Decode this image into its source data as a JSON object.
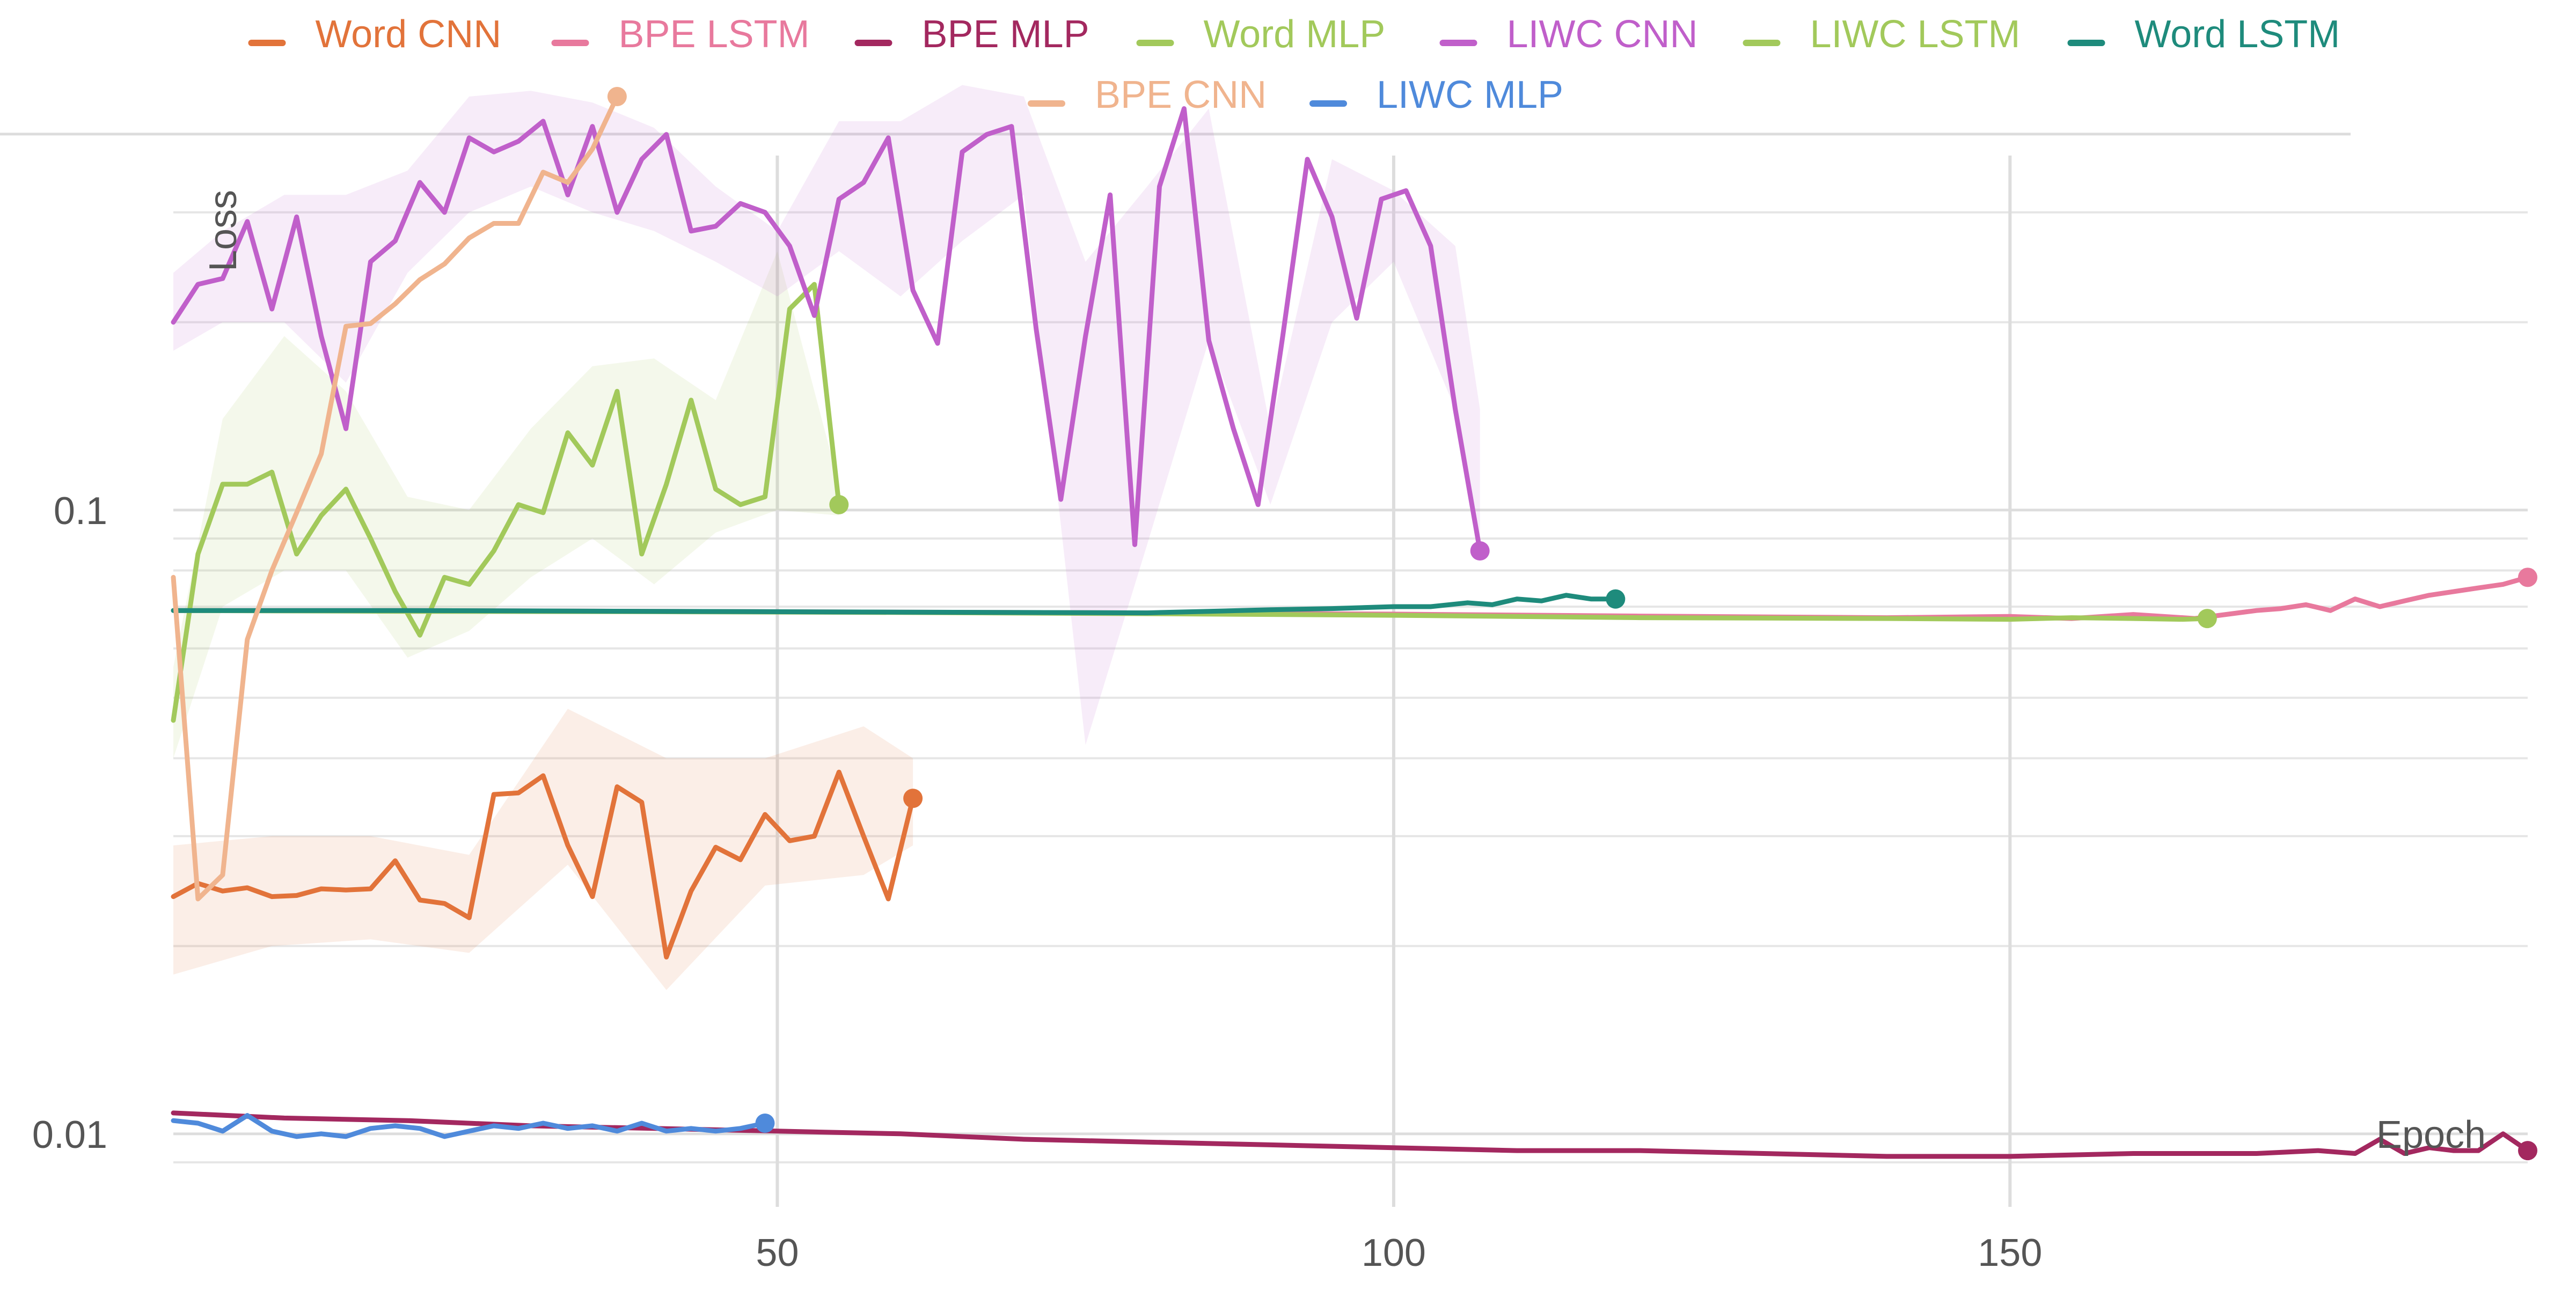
{
  "chart_data": {
    "type": "line",
    "xlabel": "Epoch",
    "ylabel": "Loss",
    "yscale": "log",
    "xlim": [
      1,
      192
    ],
    "ylim": [
      0.0086,
      0.37
    ],
    "x_ticks": [
      50,
      100,
      150
    ],
    "y_ticks": [
      {
        "value": 0.01,
        "label": "0.01"
      },
      {
        "value": 0.1,
        "label": "0.1"
      }
    ],
    "grid": true,
    "legend_position": "top",
    "series": [
      {
        "name": "Word CNN",
        "color": "#e2733a",
        "x": [
          1,
          3,
          5,
          7,
          9,
          11,
          13,
          15,
          17,
          19,
          21,
          23,
          25,
          27,
          29,
          31,
          33,
          35,
          37,
          39,
          41,
          43,
          45,
          47,
          49,
          51,
          53,
          55,
          57,
          59,
          61
        ],
        "y": [
          0.024,
          0.0252,
          0.0245,
          0.0248,
          0.024,
          0.0241,
          0.0247,
          0.0246,
          0.0247,
          0.0274,
          0.0237,
          0.0234,
          0.0222,
          0.035,
          0.0352,
          0.0375,
          0.029,
          0.024,
          0.036,
          0.034,
          0.0192,
          0.0245,
          0.0288,
          0.0275,
          0.0325,
          0.0295,
          0.03,
          0.038,
          0.03,
          0.0238,
          0.0345
        ],
        "band": {
          "x": [
            1,
            9,
            17,
            25,
            33,
            41,
            49,
            57,
            61
          ],
          "lower": [
            0.018,
            0.02,
            0.0205,
            0.0195,
            0.027,
            0.017,
            0.025,
            0.026,
            0.029
          ],
          "upper": [
            0.029,
            0.03,
            0.03,
            0.028,
            0.048,
            0.04,
            0.04,
            0.045,
            0.04
          ]
        }
      },
      {
        "name": "BPE LSTM",
        "color": "#e8799d",
        "x": [
          1,
          20,
          40,
          60,
          80,
          100,
          120,
          140,
          150,
          155,
          160,
          165,
          170,
          172,
          174,
          176,
          178,
          180,
          182,
          184,
          186,
          188,
          190,
          192
        ],
        "y": [
          0.069,
          0.069,
          0.0688,
          0.0686,
          0.0684,
          0.0681,
          0.0676,
          0.0672,
          0.0675,
          0.067,
          0.068,
          0.067,
          0.069,
          0.0695,
          0.0705,
          0.069,
          0.072,
          0.07,
          0.0715,
          0.073,
          0.074,
          0.075,
          0.076,
          0.078
        ]
      },
      {
        "name": "BPE MLP",
        "color": "#a3285f",
        "x": [
          1,
          10,
          20,
          30,
          40,
          50,
          60,
          70,
          80,
          90,
          100,
          110,
          120,
          130,
          140,
          150,
          160,
          170,
          175,
          178,
          180,
          182,
          184,
          186,
          188,
          190,
          192
        ],
        "y": [
          0.0108,
          0.0106,
          0.0105,
          0.0103,
          0.0102,
          0.0101,
          0.01,
          0.0098,
          0.0097,
          0.0096,
          0.0095,
          0.0094,
          0.0094,
          0.0093,
          0.0092,
          0.0092,
          0.0093,
          0.0093,
          0.0094,
          0.0093,
          0.0098,
          0.0093,
          0.0095,
          0.0094,
          0.0094,
          0.01,
          0.0094
        ]
      },
      {
        "name": "Word MLP",
        "color": "#a2c95b",
        "x": [
          1,
          3,
          5,
          7,
          9,
          11,
          13,
          15,
          17,
          19,
          21,
          23,
          25,
          27,
          29,
          31,
          33,
          35,
          37,
          39,
          41,
          43,
          45,
          47,
          49,
          51,
          53,
          55
        ],
        "y": [
          0.046,
          0.085,
          0.11,
          0.11,
          0.115,
          0.085,
          0.098,
          0.108,
          0.09,
          0.074,
          0.063,
          0.078,
          0.076,
          0.086,
          0.102,
          0.099,
          0.133,
          0.118,
          0.155,
          0.085,
          0.11,
          0.15,
          0.108,
          0.102,
          0.105,
          0.21,
          0.23,
          0.102
        ],
        "band": {
          "x": [
            1,
            5,
            10,
            15,
            20,
            25,
            30,
            35,
            40,
            45,
            50,
            55
          ],
          "lower": [
            0.04,
            0.07,
            0.08,
            0.08,
            0.058,
            0.064,
            0.078,
            0.09,
            0.076,
            0.092,
            0.1,
            0.098
          ],
          "upper": [
            0.056,
            0.14,
            0.19,
            0.155,
            0.105,
            0.1,
            0.135,
            0.17,
            0.175,
            0.15,
            0.26,
            0.11
          ]
        }
      },
      {
        "name": "LIWC CNN",
        "color": "#c05fca",
        "x": [
          1,
          3,
          5,
          7,
          9,
          11,
          13,
          15,
          17,
          19,
          21,
          23,
          25,
          27,
          29,
          31,
          33,
          35,
          37,
          39,
          41,
          43,
          45,
          47,
          49,
          51,
          53,
          55,
          57,
          59,
          61,
          63,
          65,
          67,
          69,
          71,
          73,
          75,
          77,
          79,
          81,
          83,
          85,
          87,
          89,
          91,
          93,
          95,
          97,
          99,
          101,
          103,
          105,
          107
        ],
        "y": [
          0.2,
          0.23,
          0.235,
          0.29,
          0.21,
          0.295,
          0.19,
          0.135,
          0.25,
          0.27,
          0.335,
          0.3,
          0.395,
          0.375,
          0.39,
          0.42,
          0.32,
          0.412,
          0.3,
          0.365,
          0.4,
          0.28,
          0.285,
          0.31,
          0.3,
          0.265,
          0.205,
          0.315,
          0.335,
          0.395,
          0.225,
          0.185,
          0.375,
          0.4,
          0.412,
          0.195,
          0.104,
          0.19,
          0.32,
          0.088,
          0.33,
          0.44,
          0.187,
          0.135,
          0.102,
          0.19,
          0.365,
          0.295,
          0.203,
          0.315,
          0.325,
          0.265,
          0.145,
          0.086
        ],
        "band": {
          "x": [
            1,
            5,
            10,
            15,
            20,
            25,
            30,
            35,
            40,
            45,
            50,
            55,
            60,
            65,
            70,
            75,
            80,
            85,
            90,
            95,
            100,
            105,
            107
          ],
          "lower": [
            0.18,
            0.2,
            0.2,
            0.16,
            0.24,
            0.3,
            0.33,
            0.3,
            0.28,
            0.25,
            0.22,
            0.26,
            0.22,
            0.27,
            0.32,
            0.042,
            0.088,
            0.187,
            0.102,
            0.2,
            0.25,
            0.145,
            0.086
          ],
          "upper": [
            0.24,
            0.28,
            0.32,
            0.32,
            0.35,
            0.46,
            0.47,
            0.45,
            0.41,
            0.33,
            0.28,
            0.42,
            0.42,
            0.48,
            0.46,
            0.25,
            0.33,
            0.44,
            0.135,
            0.365,
            0.325,
            0.265,
            0.145
          ]
        }
      },
      {
        "name": "LIWC LSTM",
        "color": "#a2c95b",
        "x": [
          1,
          20,
          40,
          60,
          80,
          100,
          120,
          140,
          150,
          155,
          160,
          164,
          166
        ],
        "y": [
          0.069,
          0.0688,
          0.0687,
          0.0685,
          0.0682,
          0.0678,
          0.0672,
          0.067,
          0.0668,
          0.0672,
          0.067,
          0.0668,
          0.067
        ]
      },
      {
        "name": "Word LSTM",
        "color": "#1e8b7c",
        "x": [
          1,
          20,
          40,
          60,
          80,
          85,
          90,
          95,
          100,
          103,
          106,
          108,
          110,
          112,
          114,
          116,
          118
        ],
        "y": [
          0.069,
          0.069,
          0.0688,
          0.0686,
          0.0684,
          0.0688,
          0.0692,
          0.0695,
          0.07,
          0.07,
          0.071,
          0.0705,
          0.072,
          0.0715,
          0.073,
          0.072,
          0.072
        ]
      },
      {
        "name": "BPE CNN",
        "color": "#f0b48e",
        "x": [
          1,
          3,
          5,
          7,
          9,
          11,
          13,
          15,
          17,
          19,
          21,
          23,
          25,
          27,
          29,
          31,
          33,
          35,
          37
        ],
        "y": [
          0.078,
          0.0238,
          0.026,
          0.062,
          0.08,
          0.099,
          0.123,
          0.197,
          0.199,
          0.214,
          0.234,
          0.248,
          0.273,
          0.288,
          0.288,
          0.348,
          0.335,
          0.379,
          0.46
        ]
      },
      {
        "name": "LIWC MLP",
        "color": "#4f8adb",
        "x": [
          1,
          3,
          5,
          7,
          9,
          11,
          13,
          15,
          17,
          19,
          21,
          23,
          25,
          27,
          29,
          31,
          33,
          35,
          37,
          39,
          41,
          43,
          45,
          47,
          49
        ],
        "y": [
          0.0105,
          0.0104,
          0.0101,
          0.0107,
          0.0101,
          0.0099,
          0.01,
          0.0099,
          0.0102,
          0.0103,
          0.0102,
          0.0099,
          0.0101,
          0.0103,
          0.0102,
          0.0104,
          0.0102,
          0.0103,
          0.0101,
          0.0104,
          0.0101,
          0.0102,
          0.0101,
          0.0102,
          0.0104
        ]
      }
    ]
  }
}
